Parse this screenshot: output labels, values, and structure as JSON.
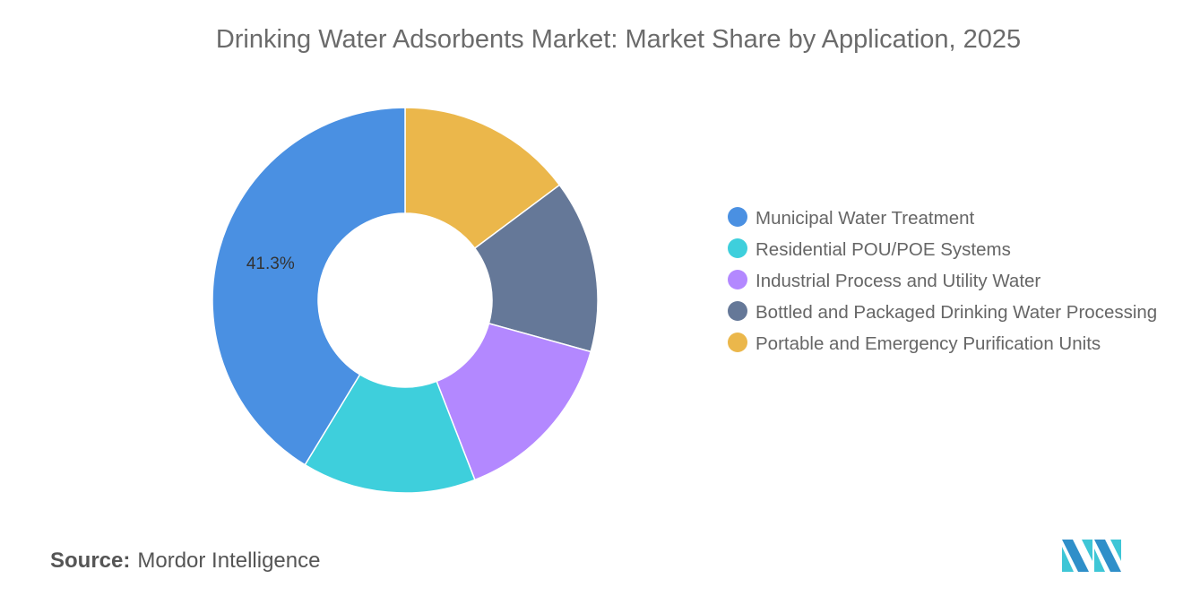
{
  "title": "Drinking Water Adsorbents Market: Market Share by Application, 2025",
  "chart_data": {
    "type": "pie",
    "donut": true,
    "title": "Drinking Water Adsorbents Market: Market Share by Application, 2025",
    "categories": [
      "Municipal Water Treatment",
      "Residential POU/POE Systems",
      "Industrial Process and Utility Water",
      "Bottled and Packaged Drinking Water Processing",
      "Portable and Emergency Purification Units"
    ],
    "values": [
      41.3,
      14.6,
      14.8,
      14.5,
      14.8
    ],
    "colors": [
      "#4a90e2",
      "#3ecfdc",
      "#b388ff",
      "#657898",
      "#ebb74b"
    ],
    "data_labels": [
      "41.3%",
      "",
      "",
      "",
      ""
    ],
    "legend_position": "right"
  },
  "source": {
    "label": "Source:",
    "value": "Mordor Intelligence"
  }
}
